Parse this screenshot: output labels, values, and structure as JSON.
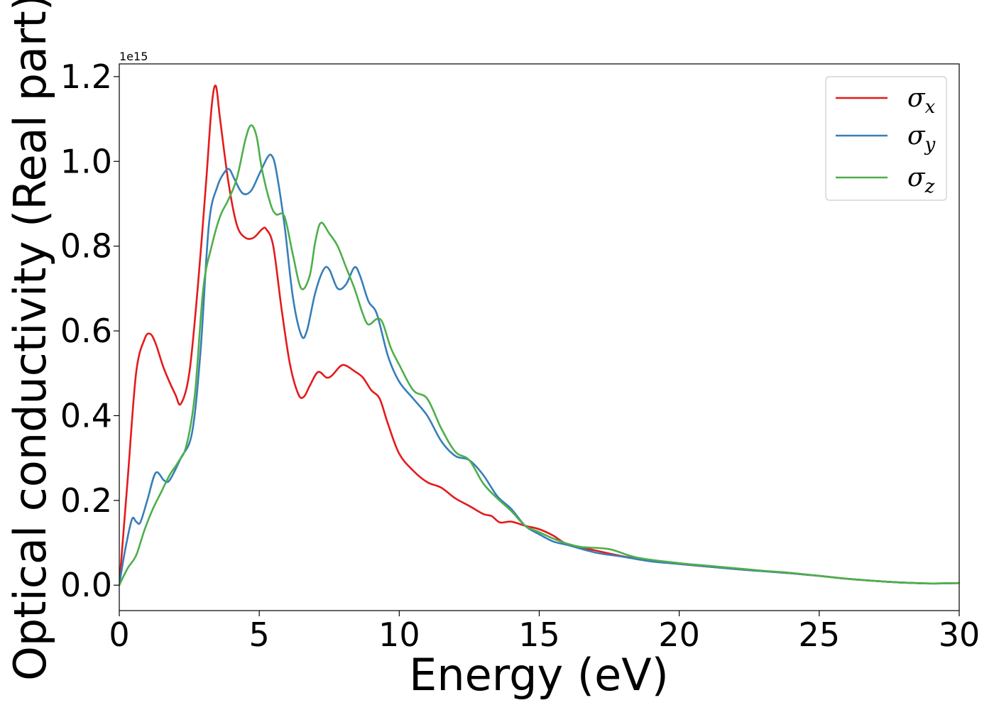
{
  "chart_data": {
    "type": "line",
    "title": "",
    "xlabel": "Energy (eV)",
    "ylabel": "Optical conductivity (Real part)",
    "y_offset_label": "1e15",
    "xlim": [
      0,
      30
    ],
    "ylim": [
      -0.06,
      1.23
    ],
    "x_ticks": [
      0,
      5,
      10,
      15,
      20,
      25,
      30
    ],
    "x_tick_labels": [
      "0",
      "5",
      "10",
      "15",
      "20",
      "25",
      "30"
    ],
    "y_ticks": [
      0.0,
      0.2,
      0.4,
      0.6,
      0.8,
      1.0,
      1.2
    ],
    "y_tick_labels": [
      "0.0",
      "0.2",
      "0.4",
      "0.6",
      "0.8",
      "1.0",
      "1.2"
    ],
    "grid": false,
    "legend_position": "top-right",
    "series": [
      {
        "name": "σx",
        "legend_base": "σ",
        "legend_sub": "x",
        "color": "#e41a1c",
        "points": [
          [
            0,
            0
          ],
          [
            0.3,
            0.25
          ],
          [
            0.6,
            0.5
          ],
          [
            0.9,
            0.58
          ],
          [
            1.1,
            0.593
          ],
          [
            1.3,
            0.57
          ],
          [
            1.6,
            0.51
          ],
          [
            2.0,
            0.45
          ],
          [
            2.2,
            0.428
          ],
          [
            2.5,
            0.5
          ],
          [
            2.8,
            0.7
          ],
          [
            3.1,
            0.95
          ],
          [
            3.3,
            1.13
          ],
          [
            3.45,
            1.178
          ],
          [
            3.6,
            1.1
          ],
          [
            3.9,
            0.95
          ],
          [
            4.2,
            0.85
          ],
          [
            4.5,
            0.82
          ],
          [
            4.8,
            0.82
          ],
          [
            5.1,
            0.84
          ],
          [
            5.25,
            0.84
          ],
          [
            5.5,
            0.8
          ],
          [
            5.8,
            0.65
          ],
          [
            6.1,
            0.52
          ],
          [
            6.4,
            0.45
          ],
          [
            6.6,
            0.445
          ],
          [
            6.8,
            0.47
          ],
          [
            7.1,
            0.503
          ],
          [
            7.4,
            0.49
          ],
          [
            7.6,
            0.495
          ],
          [
            7.9,
            0.517
          ],
          [
            8.1,
            0.518
          ],
          [
            8.4,
            0.505
          ],
          [
            8.7,
            0.49
          ],
          [
            9.0,
            0.46
          ],
          [
            9.3,
            0.44
          ],
          [
            9.6,
            0.38
          ],
          [
            10.0,
            0.31
          ],
          [
            10.5,
            0.27
          ],
          [
            11.0,
            0.243
          ],
          [
            11.5,
            0.23
          ],
          [
            12.0,
            0.205
          ],
          [
            12.5,
            0.187
          ],
          [
            13.0,
            0.168
          ],
          [
            13.3,
            0.163
          ],
          [
            13.6,
            0.148
          ],
          [
            14.0,
            0.15
          ],
          [
            14.5,
            0.14
          ],
          [
            15.0,
            0.132
          ],
          [
            15.5,
            0.117
          ],
          [
            16.0,
            0.097
          ],
          [
            17.0,
            0.082
          ],
          [
            18.0,
            0.068
          ],
          [
            19.0,
            0.058
          ],
          [
            20.0,
            0.05
          ],
          [
            21.0,
            0.044
          ],
          [
            22.0,
            0.038
          ],
          [
            23.0,
            0.033
          ],
          [
            24.0,
            0.028
          ],
          [
            25.0,
            0.022
          ],
          [
            26.0,
            0.015
          ],
          [
            27.0,
            0.01
          ],
          [
            28.0,
            0.006
          ],
          [
            29.0,
            0.004
          ],
          [
            30.0,
            0.005
          ]
        ]
      },
      {
        "name": "σy",
        "legend_base": "σ",
        "legend_sub": "y",
        "color": "#377eb8",
        "points": [
          [
            0,
            0
          ],
          [
            0.2,
            0.08
          ],
          [
            0.45,
            0.155
          ],
          [
            0.6,
            0.15
          ],
          [
            0.75,
            0.148
          ],
          [
            1.0,
            0.2
          ],
          [
            1.3,
            0.265
          ],
          [
            1.6,
            0.247
          ],
          [
            1.8,
            0.248
          ],
          [
            2.2,
            0.3
          ],
          [
            2.6,
            0.36
          ],
          [
            2.9,
            0.55
          ],
          [
            3.2,
            0.85
          ],
          [
            3.5,
            0.94
          ],
          [
            3.8,
            0.978
          ],
          [
            3.95,
            0.98
          ],
          [
            4.1,
            0.96
          ],
          [
            4.4,
            0.925
          ],
          [
            4.7,
            0.93
          ],
          [
            5.0,
            0.97
          ],
          [
            5.3,
            1.01
          ],
          [
            5.45,
            1.013
          ],
          [
            5.6,
            0.98
          ],
          [
            5.9,
            0.85
          ],
          [
            6.2,
            0.68
          ],
          [
            6.5,
            0.59
          ],
          [
            6.7,
            0.6
          ],
          [
            7.0,
            0.69
          ],
          [
            7.3,
            0.745
          ],
          [
            7.5,
            0.745
          ],
          [
            7.8,
            0.7
          ],
          [
            8.1,
            0.71
          ],
          [
            8.4,
            0.75
          ],
          [
            8.6,
            0.73
          ],
          [
            8.9,
            0.67
          ],
          [
            9.2,
            0.64
          ],
          [
            9.6,
            0.54
          ],
          [
            10.0,
            0.48
          ],
          [
            10.5,
            0.44
          ],
          [
            11.0,
            0.4
          ],
          [
            11.5,
            0.34
          ],
          [
            12.0,
            0.305
          ],
          [
            12.5,
            0.295
          ],
          [
            13.0,
            0.26
          ],
          [
            13.5,
            0.21
          ],
          [
            14.0,
            0.18
          ],
          [
            14.5,
            0.14
          ],
          [
            15.0,
            0.12
          ],
          [
            15.5,
            0.103
          ],
          [
            16.0,
            0.095
          ],
          [
            17.0,
            0.077
          ],
          [
            18.0,
            0.067
          ],
          [
            19.0,
            0.056
          ],
          [
            20.0,
            0.05
          ],
          [
            21.0,
            0.044
          ],
          [
            22.0,
            0.038
          ],
          [
            23.0,
            0.033
          ],
          [
            24.0,
            0.028
          ],
          [
            25.0,
            0.022
          ],
          [
            26.0,
            0.015
          ],
          [
            27.0,
            0.01
          ],
          [
            28.0,
            0.006
          ],
          [
            29.0,
            0.004
          ],
          [
            30.0,
            0.005
          ]
        ]
      },
      {
        "name": "σz",
        "legend_base": "σ",
        "legend_sub": "z",
        "color": "#4daf4a",
        "points": [
          [
            0,
            0
          ],
          [
            0.3,
            0.04
          ],
          [
            0.6,
            0.07
          ],
          [
            0.9,
            0.13
          ],
          [
            1.2,
            0.18
          ],
          [
            1.5,
            0.22
          ],
          [
            1.8,
            0.26
          ],
          [
            2.1,
            0.29
          ],
          [
            2.4,
            0.33
          ],
          [
            2.7,
            0.45
          ],
          [
            3.0,
            0.7
          ],
          [
            3.3,
            0.8
          ],
          [
            3.6,
            0.87
          ],
          [
            3.9,
            0.91
          ],
          [
            4.2,
            0.96
          ],
          [
            4.5,
            1.05
          ],
          [
            4.7,
            1.085
          ],
          [
            4.9,
            1.06
          ],
          [
            5.1,
            0.98
          ],
          [
            5.4,
            0.9
          ],
          [
            5.6,
            0.875
          ],
          [
            5.9,
            0.87
          ],
          [
            6.2,
            0.78
          ],
          [
            6.5,
            0.7
          ],
          [
            6.8,
            0.73
          ],
          [
            7.0,
            0.81
          ],
          [
            7.2,
            0.855
          ],
          [
            7.5,
            0.83
          ],
          [
            7.8,
            0.8
          ],
          [
            8.1,
            0.75
          ],
          [
            8.4,
            0.7
          ],
          [
            8.7,
            0.64
          ],
          [
            8.9,
            0.615
          ],
          [
            9.2,
            0.628
          ],
          [
            9.4,
            0.62
          ],
          [
            9.7,
            0.56
          ],
          [
            10.0,
            0.52
          ],
          [
            10.5,
            0.46
          ],
          [
            11.0,
            0.44
          ],
          [
            11.5,
            0.37
          ],
          [
            12.0,
            0.315
          ],
          [
            12.5,
            0.295
          ],
          [
            13.0,
            0.24
          ],
          [
            13.5,
            0.205
          ],
          [
            14.0,
            0.175
          ],
          [
            14.5,
            0.14
          ],
          [
            15.0,
            0.125
          ],
          [
            15.5,
            0.11
          ],
          [
            16.0,
            0.098
          ],
          [
            16.5,
            0.09
          ],
          [
            17.5,
            0.085
          ],
          [
            18.5,
            0.065
          ],
          [
            20.0,
            0.052
          ],
          [
            21.0,
            0.046
          ],
          [
            22.0,
            0.04
          ],
          [
            23.0,
            0.034
          ],
          [
            24.0,
            0.029
          ],
          [
            25.0,
            0.022
          ],
          [
            26.0,
            0.015
          ],
          [
            27.0,
            0.01
          ],
          [
            28.0,
            0.006
          ],
          [
            29.0,
            0.004
          ],
          [
            30.0,
            0.005
          ]
        ]
      }
    ]
  }
}
